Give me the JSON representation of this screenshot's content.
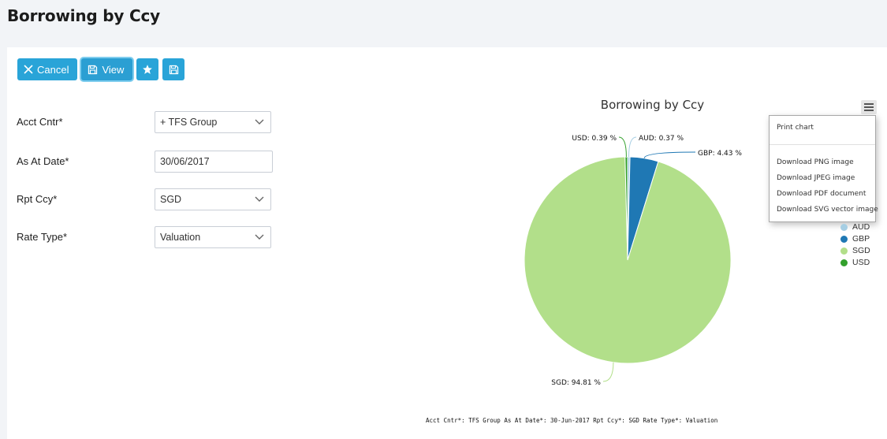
{
  "page": {
    "title": "Borrowing by Ccy"
  },
  "toolbar": {
    "cancel_label": "Cancel",
    "view_label": "View"
  },
  "form": {
    "acct_cntr_label": "Acct Cntr*",
    "acct_cntr_value": "+ TFS Group",
    "as_at_date_label": "As At Date*",
    "as_at_date_value": "30/06/2017",
    "rpt_ccy_label": "Rpt Ccy*",
    "rpt_ccy_value": "SGD",
    "rate_type_label": "Rate Type*",
    "rate_type_value": "Valuation"
  },
  "export_menu": {
    "print": "Print chart",
    "png": "Download PNG image",
    "jpeg": "Download JPEG image",
    "pdf": "Download PDF document",
    "svg": "Download SVG vector image"
  },
  "footnote": "Acct Cntr*: TFS Group As At Date*: 30-Jun-2017 Rpt Ccy*: SGD Rate Type*: Valuation",
  "chart_data": {
    "type": "pie",
    "title": "Borrowing by Ccy",
    "slices": [
      {
        "name": "AUD",
        "value": 0.37,
        "label": "AUD: 0.37 %",
        "color": "#a6cee3"
      },
      {
        "name": "GBP",
        "value": 4.43,
        "label": "GBP: 4.43 %",
        "color": "#1f78b4"
      },
      {
        "name": "SGD",
        "value": 94.81,
        "label": "SGD: 94.81 %",
        "color": "#b2df8a"
      },
      {
        "name": "USD",
        "value": 0.39,
        "label": "USD: 0.39 %",
        "color": "#33a02c"
      }
    ],
    "legend_position": "right"
  },
  "colors": {
    "accent": "#29a4d8"
  }
}
